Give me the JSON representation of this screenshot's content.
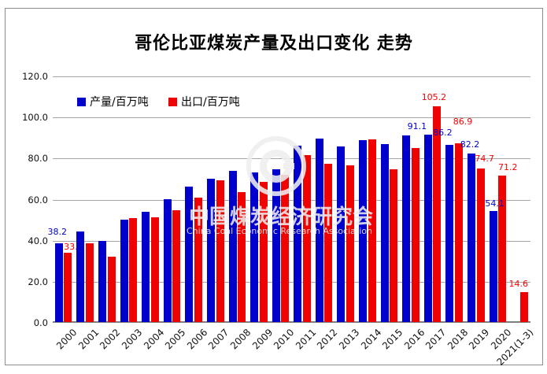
{
  "title": "哥伦比亚煤炭产量及出口变化 走势",
  "legend": {
    "production_label": "产量/百万吨",
    "exports_label": "出口/百万吨"
  },
  "watermark": {
    "cn": "中国煤炭经济研究会",
    "en": "China Coal Economic Research Association"
  },
  "colors": {
    "production_bar": "#0000CC",
    "exports_bar": "#EE0202",
    "production_label_text": "#0000CC",
    "exports_label_text": "#FF0000"
  },
  "chart_data": {
    "type": "bar",
    "title": "哥伦比亚煤炭产量及出口变化 走势",
    "categories": [
      "2000",
      "2001",
      "2002",
      "2003",
      "2004",
      "2005",
      "2006",
      "2007",
      "2008",
      "2009",
      "2010",
      "2011",
      "2012",
      "2013",
      "2014",
      "2015",
      "2016",
      "2017",
      "2018",
      "2019",
      "2020",
      "2021(1-3)"
    ],
    "series": [
      {
        "name": "产量/百万吨",
        "color": "#0000CC",
        "values": [
          38.2,
          44.0,
          39.5,
          49.9,
          53.7,
          59.8,
          66.1,
          69.6,
          73.5,
          72.8,
          74.4,
          86.0,
          89.5,
          85.5,
          88.6,
          86.5,
          90.8,
          91.1,
          86.2,
          82.2,
          54.1,
          null
        ],
        "data_labels": [
          "38.2",
          null,
          null,
          null,
          null,
          null,
          null,
          null,
          null,
          null,
          null,
          null,
          null,
          null,
          null,
          null,
          null,
          "91.1",
          "86.2",
          "82.2",
          "54.1",
          null
        ]
      },
      {
        "name": "出口/百万吨",
        "color": "#EE0202",
        "values": [
          33.8,
          38.4,
          31.9,
          50.6,
          51.0,
          54.3,
          60.7,
          69.2,
          63.4,
          68.4,
          71.6,
          81.1,
          77.2,
          76.3,
          89.1,
          74.5,
          84.8,
          105.2,
          86.9,
          74.7,
          71.2,
          14.6
        ],
        "data_labels": [
          "33.8",
          null,
          null,
          null,
          null,
          null,
          null,
          null,
          null,
          null,
          null,
          null,
          null,
          null,
          null,
          null,
          null,
          "105.2",
          "86.9",
          "74.7",
          "71.2",
          "14.6"
        ]
      }
    ],
    "ylim": [
      0,
      120
    ],
    "ytick_labels": [
      "120.0",
      "100.0",
      "80.0",
      "60.0",
      "40.0",
      "20.0",
      "0.0"
    ],
    "grid": true,
    "legend_position": "top-left-inside",
    "xlabel": "",
    "ylabel": ""
  }
}
